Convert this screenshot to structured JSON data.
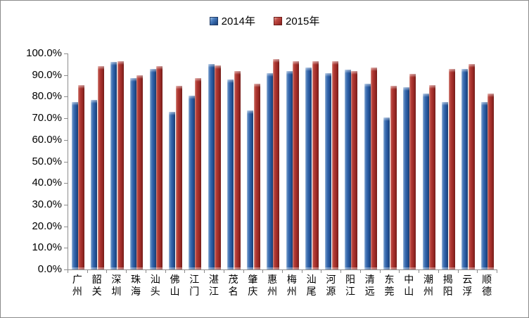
{
  "chart_data": {
    "type": "bar",
    "title": "",
    "xlabel": "",
    "ylabel": "",
    "categories": [
      "广州",
      "韶关",
      "深圳",
      "珠海",
      "汕头",
      "佛山",
      "江门",
      "湛江",
      "茂名",
      "肇庆",
      "惠州",
      "梅州",
      "汕尾",
      "河源",
      "阳江",
      "清远",
      "东莞",
      "中山",
      "潮州",
      "揭阳",
      "云浮",
      "顺德"
    ],
    "series": [
      {
        "name": "2014年",
        "color": "#2e5e9e",
        "values": [
          77.5,
          78.5,
          96.0,
          88.5,
          93.0,
          73.0,
          80.5,
          95.0,
          88.0,
          73.5,
          91.0,
          92.0,
          93.5,
          91.0,
          92.5,
          86.0,
          70.5,
          84.5,
          81.5,
          77.5,
          93.0,
          77.5
        ]
      },
      {
        "name": "2015年",
        "color": "#a93531",
        "values": [
          85.5,
          94.0,
          96.5,
          90.0,
          94.0,
          85.0,
          88.5,
          94.5,
          92.0,
          86.0,
          97.5,
          96.5,
          96.5,
          96.5,
          92.0,
          93.5,
          85.0,
          90.5,
          85.5,
          93.0,
          95.0,
          81.5
        ]
      }
    ],
    "ylim": [
      0,
      100
    ],
    "ytick_step": 10,
    "yticks": [
      "0.0%",
      "10.0%",
      "20.0%",
      "30.0%",
      "40.0%",
      "50.0%",
      "60.0%",
      "70.0%",
      "80.0%",
      "90.0%",
      "100.0%"
    ],
    "legend_position": "top-center",
    "grid": false,
    "axis_color": "#8c8c8c"
  }
}
